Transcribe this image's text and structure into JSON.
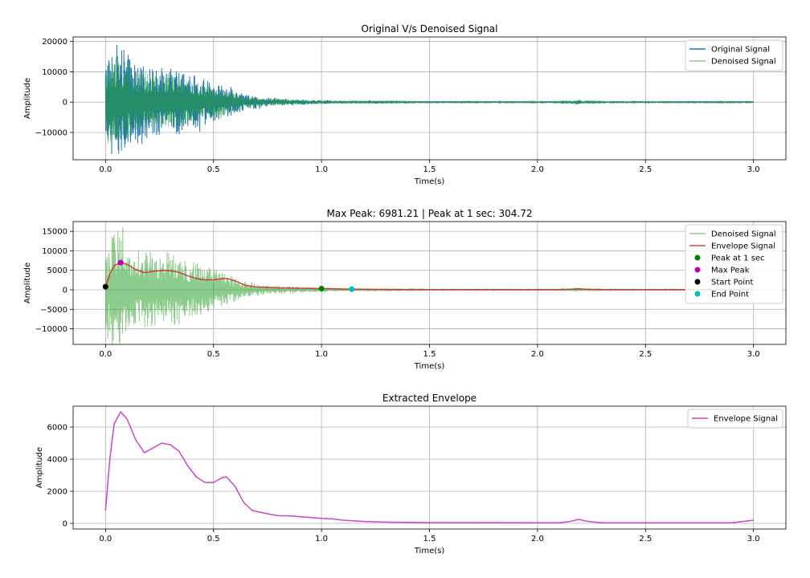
{
  "chart_data": [
    {
      "type": "line",
      "title": "Original V/s Denoised Signal",
      "xlabel": "Time(s)",
      "ylabel": "Amplitude",
      "xlim": [
        -0.15,
        3.15
      ],
      "ylim": [
        -19000,
        21500
      ],
      "xticks": [
        0.0,
        0.5,
        1.0,
        1.5,
        2.0,
        2.5,
        3.0
      ],
      "xtick_labels": [
        "0.0",
        "0.5",
        "1.0",
        "1.5",
        "2.0",
        "2.5",
        "3.0"
      ],
      "yticks": [
        -10000,
        0,
        10000,
        20000
      ],
      "ytick_labels": [
        "−10000",
        "0",
        "10000",
        "20000"
      ],
      "grid": true,
      "legend": "top-right",
      "series": [
        {
          "name": "Original Signal",
          "kind": "oscillation",
          "color": "#1f77b4",
          "alpha": 1.0,
          "envelope_t": [
            0,
            0.02,
            0.05,
            0.07,
            0.1,
            0.15,
            0.2,
            0.25,
            0.3,
            0.4,
            0.5,
            0.6,
            0.65,
            0.75,
            0.85,
            1.0,
            1.1,
            1.2,
            1.5,
            2.1,
            2.15,
            2.18,
            2.22,
            2.3,
            3.0
          ],
          "envelope_a": [
            13000,
            17000,
            19000,
            18500,
            16000,
            12000,
            12000,
            11000,
            12000,
            9000,
            6500,
            4000,
            2500,
            1500,
            1000,
            700,
            400,
            250,
            150,
            150,
            300,
            900,
            300,
            150,
            150
          ]
        },
        {
          "name": "Denoised Signal",
          "kind": "oscillation",
          "color": "#2ca02c",
          "alpha": 0.55,
          "envelope_t": [
            0,
            0.02,
            0.05,
            0.07,
            0.1,
            0.15,
            0.2,
            0.25,
            0.3,
            0.4,
            0.5,
            0.6,
            0.65,
            0.75,
            0.85,
            1.0,
            1.1,
            1.2,
            1.5,
            2.1,
            2.15,
            2.18,
            2.22,
            2.3,
            3.0
          ],
          "envelope_a": [
            11000,
            14000,
            15500,
            15000,
            13000,
            10000,
            10000,
            9000,
            10000,
            7500,
            5500,
            3200,
            2000,
            1200,
            900,
            600,
            350,
            200,
            120,
            120,
            250,
            700,
            250,
            120,
            120
          ]
        }
      ]
    },
    {
      "type": "line",
      "title": "Max Peak: 6981.21 | Peak at 1 sec: 304.72",
      "xlabel": "Time(s)",
      "ylabel": "Amplitude",
      "xlim": [
        -0.15,
        3.15
      ],
      "ylim": [
        -14000,
        17500
      ],
      "xticks": [
        0.0,
        0.5,
        1.0,
        1.5,
        2.0,
        2.5,
        3.0
      ],
      "xtick_labels": [
        "0.0",
        "0.5",
        "1.0",
        "1.5",
        "2.0",
        "2.5",
        "3.0"
      ],
      "yticks": [
        -10000,
        -5000,
        0,
        5000,
        10000,
        15000
      ],
      "ytick_labels": [
        "−10000",
        "−5000",
        "0",
        "5000",
        "10000",
        "15000"
      ],
      "grid": true,
      "legend": "top-right",
      "series": [
        {
          "name": "Denoised Signal",
          "kind": "oscillation",
          "color": "#2ca02c",
          "alpha": 0.55,
          "envelope_t": [
            0,
            0.02,
            0.05,
            0.07,
            0.1,
            0.15,
            0.2,
            0.25,
            0.3,
            0.4,
            0.5,
            0.6,
            0.65,
            0.75,
            0.85,
            1.0,
            1.1,
            1.2,
            1.5,
            2.1,
            2.15,
            2.18,
            2.22,
            2.3,
            3.0
          ],
          "envelope_a": [
            11000,
            14000,
            15500,
            15000,
            13000,
            10000,
            10000,
            9000,
            10000,
            7500,
            5500,
            3200,
            2000,
            1200,
            900,
            600,
            350,
            200,
            120,
            120,
            250,
            700,
            250,
            120,
            120
          ]
        },
        {
          "name": "Envelope Signal",
          "kind": "curve",
          "color": "#d62728",
          "alpha": 0.85,
          "x": [
            0,
            0.02,
            0.04,
            0.07,
            0.1,
            0.14,
            0.18,
            0.22,
            0.26,
            0.3,
            0.34,
            0.38,
            0.42,
            0.46,
            0.5,
            0.54,
            0.56,
            0.6,
            0.64,
            0.68,
            0.75,
            0.8,
            0.85,
            0.9,
            1.0,
            1.05,
            1.1,
            1.2,
            1.3,
            1.5,
            2.1,
            2.15,
            2.19,
            2.23,
            2.3,
            2.9,
            2.97,
            3.0
          ],
          "y": [
            800,
            4000,
            6200,
            6950,
            6500,
            5200,
            4400,
            4700,
            5000,
            4900,
            4500,
            3600,
            2900,
            2550,
            2550,
            2850,
            2900,
            2300,
            1300,
            800,
            600,
            480,
            470,
            420,
            310,
            280,
            200,
            120,
            80,
            50,
            40,
            120,
            250,
            130,
            40,
            40,
            150,
            200
          ]
        },
        {
          "name": "Peak at 1 sec",
          "kind": "marker",
          "color": "#008000",
          "x": [
            1.0
          ],
          "y": [
            304.72
          ]
        },
        {
          "name": "Max Peak",
          "kind": "marker",
          "color": "#bf00bf",
          "x": [
            0.07
          ],
          "y": [
            6981.21
          ]
        },
        {
          "name": "Start Point",
          "kind": "marker",
          "color": "#000000",
          "x": [
            0.0
          ],
          "y": [
            800
          ]
        },
        {
          "name": "End Point",
          "kind": "marker",
          "color": "#00bfbf",
          "x": [
            1.14
          ],
          "y": [
            150
          ]
        }
      ]
    },
    {
      "type": "line",
      "title": "Extracted Envelope",
      "xlabel": "Time(s)",
      "ylabel": "Amplitude",
      "xlim": [
        -0.15,
        3.15
      ],
      "ylim": [
        -350,
        7300
      ],
      "xticks": [
        0.0,
        0.5,
        1.0,
        1.5,
        2.0,
        2.5,
        3.0
      ],
      "xtick_labels": [
        "0.0",
        "0.5",
        "1.0",
        "1.5",
        "2.0",
        "2.5",
        "3.0"
      ],
      "yticks": [
        0,
        2000,
        4000,
        6000
      ],
      "ytick_labels": [
        "0",
        "2000",
        "4000",
        "6000"
      ],
      "grid": true,
      "legend": "top-right",
      "series": [
        {
          "name": "Envelope Signal",
          "kind": "curve",
          "color": "#cc44cc",
          "alpha": 1.0,
          "x": [
            0,
            0.02,
            0.04,
            0.07,
            0.1,
            0.14,
            0.18,
            0.22,
            0.26,
            0.3,
            0.34,
            0.38,
            0.42,
            0.46,
            0.5,
            0.54,
            0.56,
            0.6,
            0.64,
            0.68,
            0.75,
            0.8,
            0.85,
            0.9,
            1.0,
            1.05,
            1.1,
            1.2,
            1.3,
            1.5,
            2.1,
            2.15,
            2.19,
            2.23,
            2.3,
            2.9,
            2.97,
            3.0
          ],
          "y": [
            800,
            4000,
            6200,
            6950,
            6500,
            5200,
            4400,
            4700,
            5000,
            4900,
            4500,
            3600,
            2900,
            2550,
            2550,
            2850,
            2900,
            2300,
            1300,
            800,
            600,
            480,
            470,
            420,
            310,
            280,
            200,
            120,
            80,
            50,
            40,
            120,
            250,
            130,
            40,
            40,
            150,
            200
          ]
        }
      ]
    }
  ]
}
